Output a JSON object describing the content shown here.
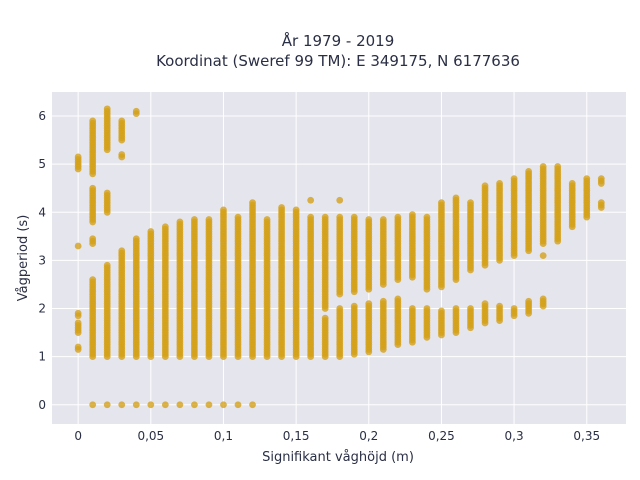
{
  "chart_data": {
    "type": "scatter",
    "title_line1": "År 1979 - 2019",
    "title_line2": "Koordinat (Sweref 99 TM): E 349175, N 6177636",
    "xlabel": "Signifikant våghöjd (m)",
    "ylabel": "Vågperiod (s)",
    "xlim": [
      -0.018,
      0.377
    ],
    "ylim": [
      -0.4,
      6.5
    ],
    "x_ticks": [
      0,
      0.05,
      0.1,
      0.15,
      0.2,
      0.25,
      0.3,
      0.35
    ],
    "x_tick_labels": [
      "0",
      "0,05",
      "0,1",
      "0,15",
      "0,2",
      "0,25",
      "0,3",
      "0,35"
    ],
    "y_ticks": [
      0,
      1,
      2,
      3,
      4,
      5,
      6
    ],
    "y_tick_labels": [
      "0",
      "1",
      "2",
      "3",
      "4",
      "5",
      "6"
    ],
    "grid": true,
    "colors": {
      "marker": "#D4A017",
      "plot_bg": "#E5E5EE",
      "grid": "#ffffff"
    },
    "columns": [
      {
        "x": 0.0,
        "ranges": [
          [
            1.15,
            1.2
          ],
          [
            1.5,
            1.7
          ],
          [
            1.85,
            1.9
          ],
          [
            3.3,
            3.3
          ],
          [
            4.9,
            5.15
          ]
        ]
      },
      {
        "x": 0.01,
        "ranges": [
          [
            0,
            0
          ],
          [
            1.0,
            2.6
          ],
          [
            3.35,
            3.45
          ],
          [
            3.8,
            4.5
          ],
          [
            4.8,
            5.9
          ]
        ]
      },
      {
        "x": 0.02,
        "ranges": [
          [
            0,
            0
          ],
          [
            1.0,
            2.9
          ],
          [
            4.0,
            4.4
          ],
          [
            5.3,
            6.15
          ]
        ]
      },
      {
        "x": 0.03,
        "ranges": [
          [
            0,
            0
          ],
          [
            1.0,
            3.2
          ],
          [
            5.15,
            5.2
          ],
          [
            5.5,
            5.9
          ]
        ]
      },
      {
        "x": 0.04,
        "ranges": [
          [
            0,
            0
          ],
          [
            1.0,
            3.45
          ],
          [
            6.05,
            6.1
          ]
        ]
      },
      {
        "x": 0.05,
        "ranges": [
          [
            0,
            0
          ],
          [
            1.0,
            3.6
          ]
        ]
      },
      {
        "x": 0.06,
        "ranges": [
          [
            0,
            0
          ],
          [
            1.0,
            3.7
          ]
        ]
      },
      {
        "x": 0.07,
        "ranges": [
          [
            0,
            0
          ],
          [
            1.0,
            3.8
          ]
        ]
      },
      {
        "x": 0.08,
        "ranges": [
          [
            0,
            0
          ],
          [
            1.0,
            3.85
          ]
        ]
      },
      {
        "x": 0.09,
        "ranges": [
          [
            0,
            0
          ],
          [
            1.0,
            3.85
          ]
        ]
      },
      {
        "x": 0.1,
        "ranges": [
          [
            0,
            0
          ],
          [
            1.0,
            4.05
          ]
        ]
      },
      {
        "x": 0.11,
        "ranges": [
          [
            0,
            0
          ],
          [
            1.0,
            3.9
          ]
        ]
      },
      {
        "x": 0.12,
        "ranges": [
          [
            0,
            0
          ],
          [
            1.0,
            4.2
          ]
        ]
      },
      {
        "x": 0.13,
        "ranges": [
          [
            1.0,
            3.85
          ]
        ]
      },
      {
        "x": 0.14,
        "ranges": [
          [
            1.0,
            4.1
          ]
        ]
      },
      {
        "x": 0.15,
        "ranges": [
          [
            1.0,
            4.05
          ]
        ]
      },
      {
        "x": 0.16,
        "ranges": [
          [
            1.0,
            3.9
          ],
          [
            4.25,
            4.25
          ]
        ]
      },
      {
        "x": 0.17,
        "ranges": [
          [
            1.0,
            1.8
          ],
          [
            2.0,
            3.9
          ]
        ]
      },
      {
        "x": 0.18,
        "ranges": [
          [
            1.0,
            2.0
          ],
          [
            2.3,
            3.9
          ],
          [
            4.25,
            4.25
          ]
        ]
      },
      {
        "x": 0.19,
        "ranges": [
          [
            1.05,
            2.05
          ],
          [
            2.35,
            3.9
          ]
        ]
      },
      {
        "x": 0.2,
        "ranges": [
          [
            1.1,
            2.1
          ],
          [
            2.4,
            3.85
          ]
        ]
      },
      {
        "x": 0.21,
        "ranges": [
          [
            1.15,
            2.15
          ],
          [
            2.5,
            3.85
          ]
        ]
      },
      {
        "x": 0.22,
        "ranges": [
          [
            1.25,
            2.2
          ],
          [
            2.6,
            3.9
          ]
        ]
      },
      {
        "x": 0.23,
        "ranges": [
          [
            1.3,
            2.0
          ],
          [
            2.65,
            3.95
          ]
        ]
      },
      {
        "x": 0.24,
        "ranges": [
          [
            1.4,
            2.0
          ],
          [
            2.4,
            3.9
          ]
        ]
      },
      {
        "x": 0.25,
        "ranges": [
          [
            1.45,
            1.95
          ],
          [
            2.45,
            4.2
          ]
        ]
      },
      {
        "x": 0.26,
        "ranges": [
          [
            1.5,
            2.0
          ],
          [
            2.6,
            4.3
          ]
        ]
      },
      {
        "x": 0.27,
        "ranges": [
          [
            1.6,
            2.0
          ],
          [
            2.8,
            4.2
          ]
        ]
      },
      {
        "x": 0.28,
        "ranges": [
          [
            1.7,
            2.1
          ],
          [
            2.9,
            4.55
          ]
        ]
      },
      {
        "x": 0.29,
        "ranges": [
          [
            1.75,
            2.05
          ],
          [
            3.0,
            4.6
          ]
        ]
      },
      {
        "x": 0.3,
        "ranges": [
          [
            1.85,
            2.0
          ],
          [
            3.1,
            4.7
          ]
        ]
      },
      {
        "x": 0.31,
        "ranges": [
          [
            1.9,
            2.15
          ],
          [
            3.2,
            4.85
          ]
        ]
      },
      {
        "x": 0.32,
        "ranges": [
          [
            2.05,
            2.2
          ],
          [
            3.1,
            3.1
          ],
          [
            3.35,
            4.95
          ]
        ]
      },
      {
        "x": 0.33,
        "ranges": [
          [
            3.4,
            4.95
          ]
        ]
      },
      {
        "x": 0.34,
        "ranges": [
          [
            3.7,
            4.6
          ]
        ]
      },
      {
        "x": 0.35,
        "ranges": [
          [
            3.9,
            4.7
          ]
        ]
      },
      {
        "x": 0.36,
        "ranges": [
          [
            4.1,
            4.2
          ],
          [
            4.6,
            4.7
          ]
        ]
      }
    ]
  }
}
